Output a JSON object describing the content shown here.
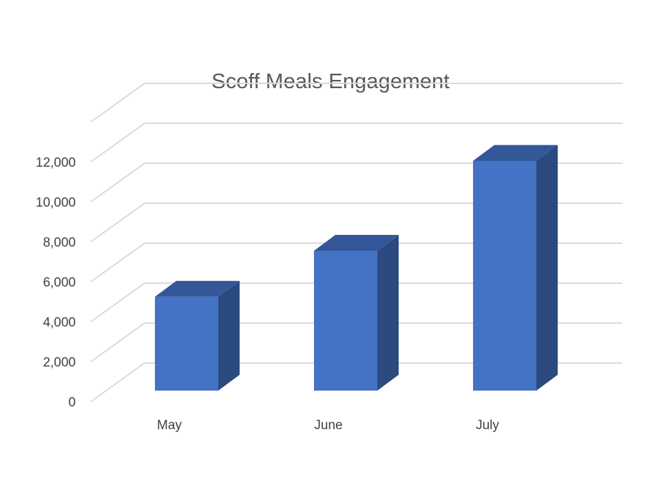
{
  "chart_data": {
    "type": "bar",
    "title": "Scoff Meals Engagement",
    "categories": [
      "May",
      "June",
      "July"
    ],
    "values": [
      4700,
      7000,
      11500
    ],
    "ylim": [
      0,
      14000
    ],
    "yticks": [
      "0",
      "2,000",
      "4,000",
      "6,000",
      "8,000",
      "10,000",
      "12,000"
    ],
    "grid": true,
    "three_d": true,
    "colors": {
      "front": "#4472C4",
      "side": "#2A4A80",
      "top": "#34579A",
      "grid": "#D9D9D9"
    }
  }
}
